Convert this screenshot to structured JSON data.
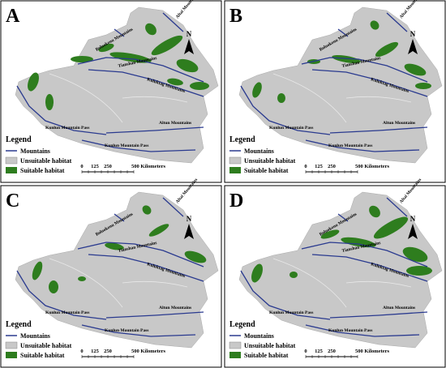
{
  "panels": [
    {
      "label": "A"
    },
    {
      "label": "B"
    },
    {
      "label": "C"
    },
    {
      "label": "D"
    }
  ],
  "map_labels": {
    "altai": "Altai Mountains",
    "boluokenu": "Boluokenu Mountains",
    "tianshan": "Tianshan Mountains",
    "kuluktag": "Kuluktag Mountains",
    "kunlun_pass_1": "Kunlun Mountain Pass",
    "kunlun_pass_2": "Kunlun Mountain Pass",
    "altun": "Altun Mountains",
    "north": "N"
  },
  "legend": {
    "title": "Legend",
    "items": [
      "Mountains",
      "Unsuitable habitat",
      "Suitable habitat"
    ]
  },
  "scale": {
    "ticks": [
      "0",
      "125",
      "250"
    ],
    "end": "500 Kilometers"
  }
}
